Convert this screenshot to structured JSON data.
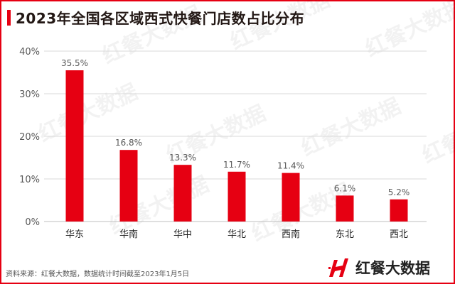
{
  "title": "2023年全国各区域西式快餐门店数占比分布",
  "source": "资料来源：红餐大数据，数据统计时间截至2023年1月5日",
  "logo": {
    "text": "红餐大数据"
  },
  "watermark": "红餐大数据",
  "colors": {
    "accent": "#e60012",
    "bar": "#e60012",
    "grid": "#d9d9d9",
    "text": "#595959"
  },
  "chart_data": {
    "type": "bar",
    "title": "2023年全国各区域西式快餐门店数占比分布",
    "categories": [
      "华东",
      "华南",
      "华中",
      "华北",
      "西南",
      "东北",
      "西北"
    ],
    "values": [
      35.5,
      16.8,
      13.3,
      11.7,
      11.4,
      6.1,
      5.2
    ],
    "data_labels": [
      "35.5%",
      "16.8%",
      "13.3%",
      "11.7%",
      "11.4%",
      "6.1%",
      "5.2%"
    ],
    "yticks": [
      "0%",
      "10%",
      "20%",
      "30%",
      "40%"
    ],
    "ytick_values": [
      0,
      10,
      20,
      30,
      40
    ],
    "ylim": [
      0,
      40
    ],
    "grid": true,
    "xlabel": "",
    "ylabel": ""
  }
}
